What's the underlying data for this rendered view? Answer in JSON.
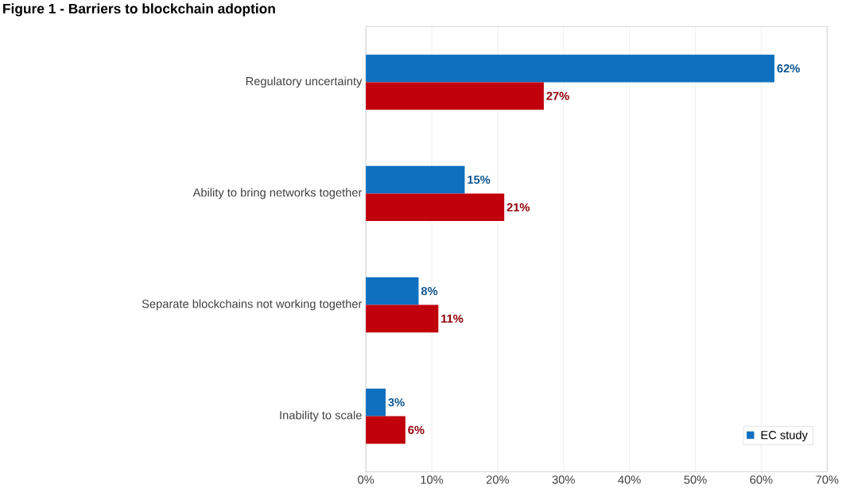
{
  "chart_data": {
    "type": "bar",
    "orientation": "horizontal",
    "title": "Figure 1 - Barriers to blockchain adoption",
    "categories": [
      "Regulatory uncertainty",
      "Ability to bring networks together",
      "Separate blockchains not working together",
      "Inability to scale"
    ],
    "series": [
      {
        "name": "EC study",
        "color": "#0f70c0",
        "values": [
          62,
          15,
          8,
          3
        ],
        "value_labels": [
          "62%",
          "15%",
          "8%",
          "3%"
        ]
      },
      {
        "color": "#c0000b",
        "values": [
          27,
          21,
          11,
          6
        ],
        "value_labels": [
          "27%",
          "21%",
          "11%",
          "6%"
        ]
      }
    ],
    "xlim": [
      0,
      70
    ],
    "xticks": [
      {
        "value": 0,
        "label": "0%"
      },
      {
        "value": 10,
        "label": "10%"
      },
      {
        "value": 20,
        "label": "20%"
      },
      {
        "value": 30,
        "label": "30%"
      },
      {
        "value": 40,
        "label": "40%"
      },
      {
        "value": 50,
        "label": "50%"
      },
      {
        "value": 60,
        "label": "60%"
      },
      {
        "value": 70,
        "label": "70%"
      }
    ],
    "grid": "x",
    "legend": "bottom right"
  }
}
